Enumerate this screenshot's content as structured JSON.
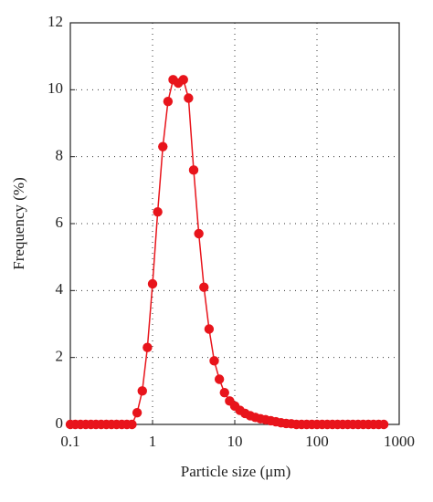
{
  "chart_data": {
    "type": "line",
    "xlabel": "Particle size (μm)",
    "ylabel": "Frequency (%)",
    "x": [
      0.1,
      0.115,
      0.133,
      0.154,
      0.178,
      0.205,
      0.237,
      0.274,
      0.316,
      0.365,
      0.422,
      0.487,
      0.562,
      0.649,
      0.75,
      0.866,
      1,
      1.155,
      1.334,
      1.54,
      1.778,
      2.054,
      2.371,
      2.738,
      3.162,
      3.652,
      4.217,
      4.87,
      5.623,
      6.494,
      7.499,
      8.66,
      10,
      11.55,
      13.34,
      15.4,
      17.78,
      20.54,
      23.71,
      27.38,
      31.62,
      36.52,
      42.17,
      48.7,
      56.23,
      64.94,
      74.99,
      86.6,
      100,
      115.5,
      133.4,
      154,
      177.8,
      205.4,
      237.1,
      273.8,
      316.2,
      365.2,
      421.7,
      487,
      562.3,
      649.4
    ],
    "series": [
      {
        "color": "#e8141b",
        "values": [
          0,
          0,
          0,
          0,
          0,
          0,
          0,
          0,
          0,
          0,
          0,
          0,
          0,
          0.35,
          1.0,
          2.3,
          4.2,
          6.35,
          8.3,
          9.65,
          10.3,
          10.2,
          10.3,
          9.75,
          7.6,
          5.7,
          4.1,
          2.85,
          1.9,
          1.35,
          0.95,
          0.7,
          0.55,
          0.42,
          0.33,
          0.26,
          0.21,
          0.17,
          0.14,
          0.11,
          0.08,
          0.05,
          0.03,
          0.02,
          0,
          0,
          0,
          0,
          0,
          0,
          0,
          0,
          0,
          0,
          0,
          0,
          0,
          0,
          0,
          0,
          0,
          0
        ]
      }
    ],
    "xlim": [
      0.1,
      1000
    ],
    "xticks": [
      0.1,
      1,
      10,
      100,
      1000
    ],
    "xscale": "log",
    "ylim": [
      0,
      12
    ],
    "yticks": [
      0,
      2,
      4,
      6,
      8,
      10,
      12
    ],
    "grid": true
  }
}
